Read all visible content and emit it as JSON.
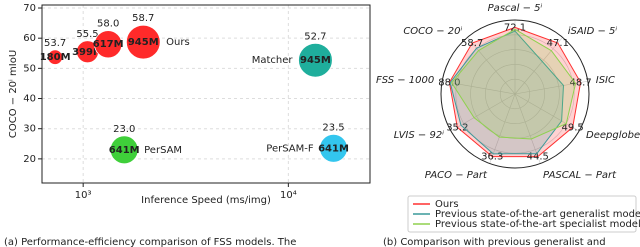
{
  "chart_data": [
    {
      "type": "scatter",
      "xlabel": "Inference Speed (ms/img)",
      "ylabel": "COCO − 20ⁱ mIoU",
      "xscale": "log",
      "xlim": [
        630,
        25000
      ],
      "xticks": [
        {
          "value": 1000,
          "label": "10³"
        },
        {
          "value": 10000,
          "label": "10⁴"
        }
      ],
      "ylim": [
        12,
        71
      ],
      "yticks": [
        20,
        30,
        40,
        50,
        60,
        70
      ],
      "grid": true,
      "series": [
        {
          "name": "Ours",
          "color": "#ff2a2a",
          "x": [
            730,
            1050,
            1324,
            1963
          ],
          "values": [
            53.7,
            55.5,
            58.0,
            58.7
          ],
          "value_labels": [
            "53.7",
            "55.5",
            "58.0",
            "58.7"
          ],
          "sizes": [
            180,
            399,
            617,
            945
          ],
          "size_labels": [
            "180M",
            "399M",
            "617M",
            "945M"
          ]
        },
        {
          "name": "Matcher",
          "color": "#1fae9c",
          "x": [
            13550
          ],
          "values": [
            52.7
          ],
          "value_labels": [
            "52.7"
          ],
          "sizes": [
            945
          ],
          "size_labels": [
            "945M"
          ]
        },
        {
          "name": "PerSAM",
          "color": "#3fcf3a",
          "x": [
            1585
          ],
          "values": [
            23.0
          ],
          "value_labels": [
            "23.0"
          ],
          "sizes": [
            641
          ],
          "size_labels": [
            "641M"
          ]
        },
        {
          "name": "PerSAM-F",
          "color": "#33c6ee",
          "x": [
            16600
          ],
          "values": [
            23.5
          ],
          "value_labels": [
            "23.5"
          ],
          "sizes": [
            641
          ],
          "size_labels": [
            "641M"
          ]
        }
      ]
    },
    {
      "type": "radar",
      "categories": [
        "Pascal − 5ⁱ",
        "iSAID − 5ⁱ",
        "ISIC",
        "Deepglobe",
        "PASCAL − Part",
        "PACO − Part",
        "LVIS − 92ⁱ",
        "FSS − 1000",
        "COCO − 20ⁱ"
      ],
      "grid": true,
      "legend": "lower center",
      "series": [
        {
          "name": "Ours",
          "color": "#ff3030",
          "values": [
            72.1,
            47.1,
            48.7,
            49.5,
            44.5,
            36.3,
            35.2,
            88.0,
            58.7
          ],
          "value_labels": [
            "72.1",
            "47.1",
            "48.7",
            "49.5",
            "44.5",
            "36.3",
            "35.2",
            "88.0",
            "58.7"
          ]
        },
        {
          "name": "Previous state-of-the-art generalist models",
          "color": "#3a9a9a",
          "values": [
            68.1,
            30.0,
            36.0,
            40.0,
            42.5,
            34.7,
            33.0,
            87.0,
            52.7
          ]
        },
        {
          "name": "Previous state-of-the-art specialist models",
          "color": "#8fd14f",
          "values": [
            70.0,
            40.0,
            45.0,
            44.0,
            32.0,
            25.0,
            25.0,
            85.0,
            50.0
          ]
        }
      ]
    }
  ],
  "captions": [
    "(a) Performance-efficiency comparison of FSS models. The",
    "(b) Comparison with previous generalist and"
  ]
}
